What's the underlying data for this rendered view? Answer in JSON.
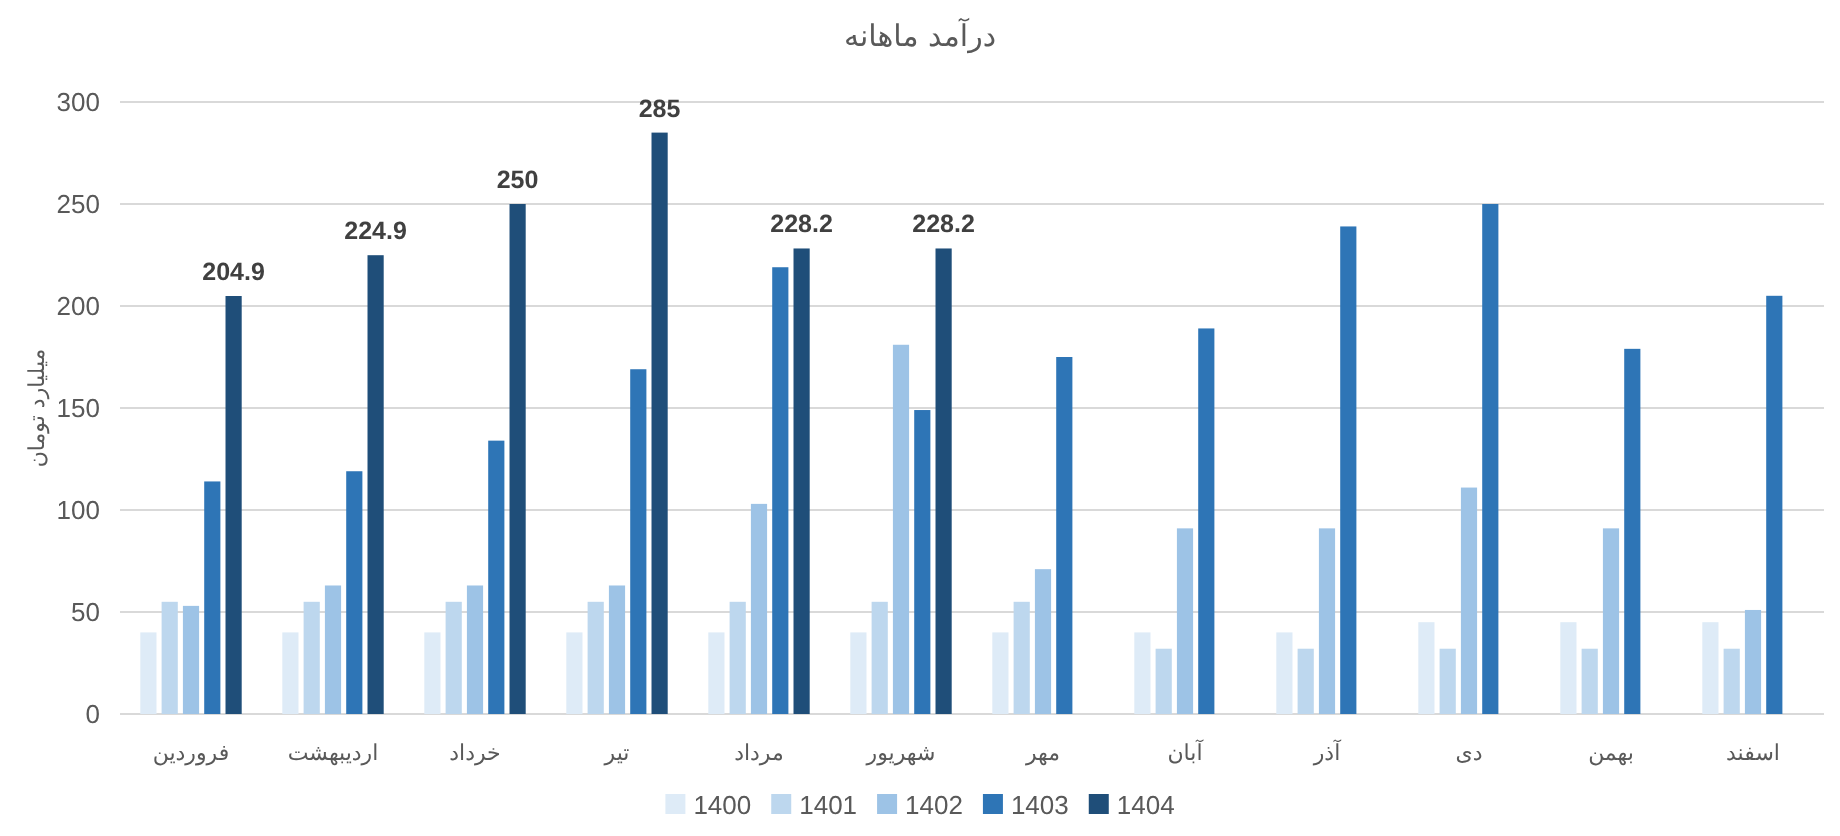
{
  "chart_data": {
    "type": "bar",
    "title": "درآمد ماهانه",
    "ylabel": "میلیارد تومان",
    "categories": [
      "فروردین",
      "اردیبهشت",
      "خرداد",
      "تیر",
      "مرداد",
      "شهریور",
      "مهر",
      "آبان",
      "آذر",
      "دی",
      "بهمن",
      "اسفند"
    ],
    "series": [
      {
        "name": "1400",
        "color": "#deebf7",
        "values": [
          40,
          40,
          40,
          40,
          40,
          40,
          40,
          40,
          40,
          45,
          45,
          45
        ]
      },
      {
        "name": "1401",
        "color": "#bdd7ee",
        "values": [
          55,
          55,
          55,
          55,
          55,
          55,
          55,
          32,
          32,
          32,
          32,
          32
        ]
      },
      {
        "name": "1402",
        "color": "#9dc3e6",
        "values": [
          53,
          63,
          63,
          63,
          103,
          181,
          71,
          91,
          91,
          111,
          91,
          51
        ]
      },
      {
        "name": "1403",
        "color": "#2e75b6",
        "values": [
          114,
          119,
          134,
          169,
          219,
          149,
          175,
          189,
          239,
          250,
          179,
          205
        ]
      },
      {
        "name": "1404",
        "color": "#1f4e79",
        "values": [
          204.9,
          224.9,
          250,
          285,
          228.2,
          228.2,
          null,
          null,
          null,
          null,
          null,
          null
        ],
        "value_labels": [
          "204.9",
          "224.9",
          "250",
          "285",
          "228.2",
          "228.2",
          null,
          null,
          null,
          null,
          null,
          null
        ]
      }
    ],
    "ylim": [
      0,
      300
    ],
    "yticks": [
      0,
      50,
      100,
      150,
      200,
      250,
      300
    ],
    "grid": "y",
    "legend": "bottom"
  }
}
